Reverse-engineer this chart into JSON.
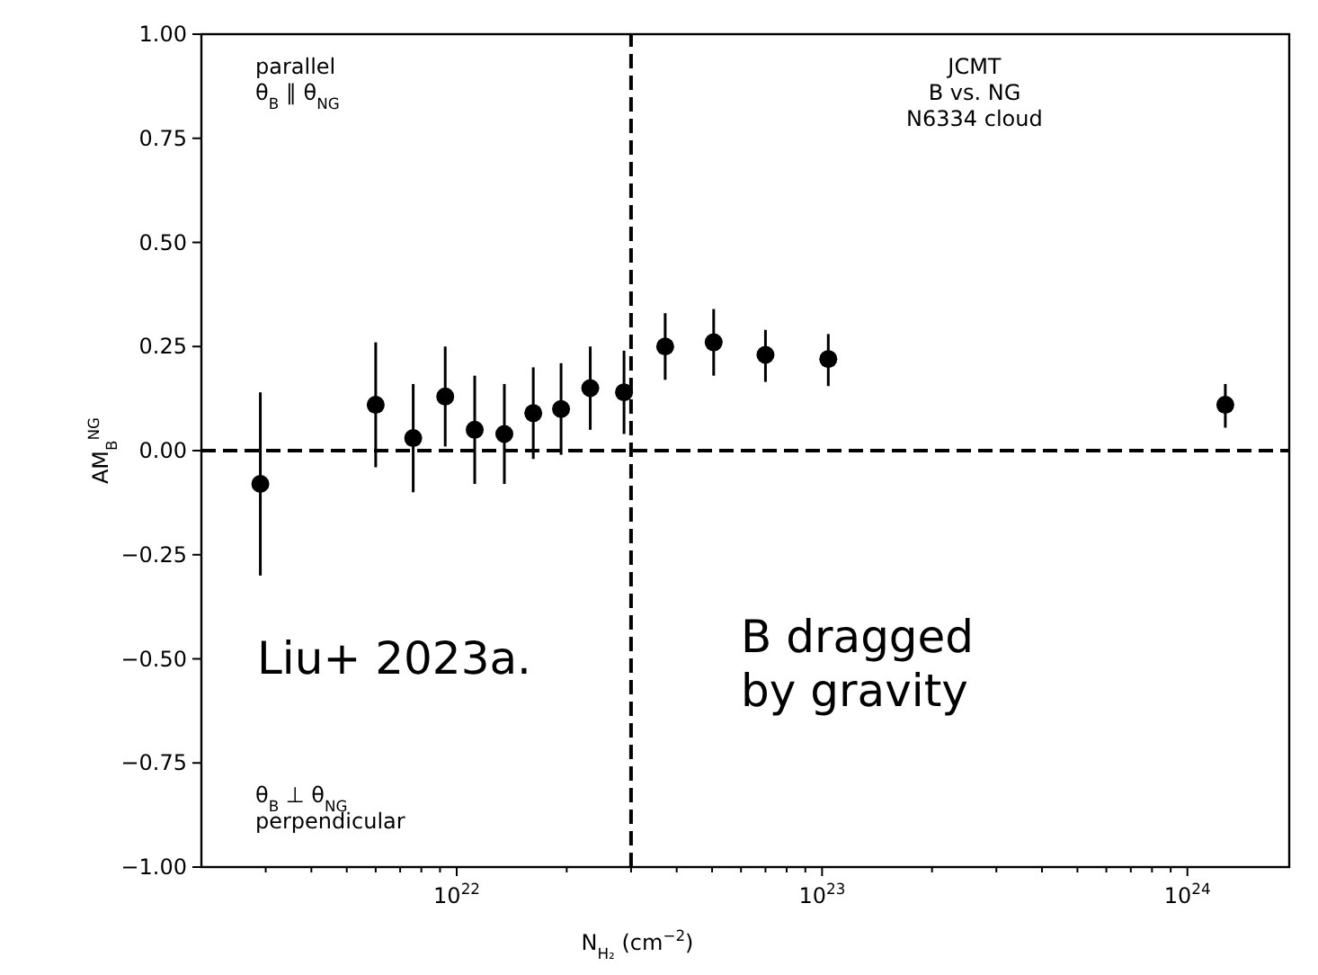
{
  "chart_data": {
    "type": "scatter",
    "xlabel": "N$_{H₂}$ (cm$^{−2}$)",
    "ylabel": "AM$_{B}$$^{NG}$",
    "log": "x",
    "xlim": [
      2e+21,
      1.9e+24
    ],
    "ylim": [
      -1,
      1
    ],
    "xticks": [
      {
        "value": 3e+21,
        "label": null
      },
      {
        "value": 4e+21,
        "label": null
      },
      {
        "value": 5e+21,
        "label": null
      },
      {
        "value": 6e+21,
        "label": null
      },
      {
        "value": 7e+21,
        "label": null
      },
      {
        "value": 8e+21,
        "label": null
      },
      {
        "value": 9e+21,
        "label": null
      },
      {
        "value": 1e+22,
        "label": "10$^{22}$"
      },
      {
        "value": 2e+22,
        "label": null
      },
      {
        "value": 3e+22,
        "label": null
      },
      {
        "value": 4e+22,
        "label": null
      },
      {
        "value": 5e+22,
        "label": null
      },
      {
        "value": 6e+22,
        "label": null
      },
      {
        "value": 7e+22,
        "label": null
      },
      {
        "value": 8e+22,
        "label": null
      },
      {
        "value": 9e+22,
        "label": null
      },
      {
        "value": 1e+23,
        "label": "10$^{23}$"
      },
      {
        "value": 2e+23,
        "label": null
      },
      {
        "value": 3e+23,
        "label": null
      },
      {
        "value": 4e+23,
        "label": null
      },
      {
        "value": 5e+23,
        "label": null
      },
      {
        "value": 6e+23,
        "label": null
      },
      {
        "value": 7e+23,
        "label": null
      },
      {
        "value": 8e+23,
        "label": null
      },
      {
        "value": 9e+23,
        "label": null
      },
      {
        "value": 1e+24,
        "label": "10$^{24}$"
      }
    ],
    "yticks": [
      {
        "value": -1,
        "label": "−1.00"
      },
      {
        "value": -0.75,
        "label": "−0.75"
      },
      {
        "value": -0.5,
        "label": "−0.50"
      },
      {
        "value": -0.25,
        "label": "−0.25"
      },
      {
        "value": 0,
        "label": "0.00"
      },
      {
        "value": 0.25,
        "label": "0.25"
      },
      {
        "value": 0.5,
        "label": "0.50"
      },
      {
        "value": 0.75,
        "label": "0.75"
      },
      {
        "value": 1,
        "label": "1.00"
      }
    ],
    "grid": false,
    "marker": "circle",
    "series": [
      {
        "color": "#000000",
        "x": [
          2.9e+21,
          6e+21,
          7.6e+21,
          9.3e+21,
          1.12e+22,
          1.35e+22,
          1.62e+22,
          1.93e+22,
          2.32e+22,
          2.87e+22,
          3.72e+22,
          5.05e+22,
          7e+22,
          1.04e+23,
          1.27e+24
        ],
        "values": [
          -0.08,
          0.11,
          0.03,
          0.13,
          0.05,
          0.04,
          0.09,
          0.1,
          0.15,
          0.14,
          0.25,
          0.26,
          0.23,
          0.22,
          0.11
        ],
        "errors": [
          [
            -0.3,
            0.14
          ],
          [
            -0.04,
            0.26
          ],
          [
            -0.1,
            0.16
          ],
          [
            0.01,
            0.25
          ],
          [
            -0.08,
            0.18
          ],
          [
            -0.08,
            0.16
          ],
          [
            -0.02,
            0.2
          ],
          [
            -0.01,
            0.21
          ],
          [
            0.05,
            0.25
          ],
          [
            0.04,
            0.24
          ],
          [
            0.17,
            0.33
          ],
          [
            0.18,
            0.34
          ],
          [
            0.165,
            0.29
          ],
          [
            0.155,
            0.28
          ],
          [
            0.055,
            0.16
          ]
        ]
      }
    ],
    "ref_lines": [
      {
        "axis": "y",
        "value": 0,
        "color": "#000000",
        "line_style": "dashed"
      },
      {
        "axis": "x",
        "value": 3e+22,
        "color": "#000000",
        "line_style": "dashed"
      }
    ],
    "annotations": [
      "parallel\nθ$_{B}$ ∥ θ$_{NG}$",
      "JCMT\nB vs. NG\nN6334 cloud",
      "θ$_{B}$ ⊥ θ$_{NG}$\nperpendicular",
      "Liu+ 2023a.",
      "B dragged\nby gravity"
    ]
  }
}
